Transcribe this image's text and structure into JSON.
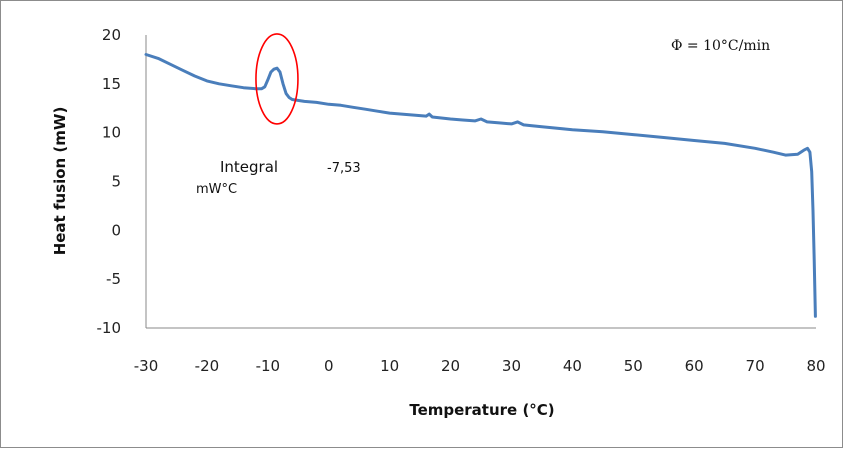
{
  "chart_data": {
    "type": "line",
    "xlabel": "Temperature (°C)",
    "ylabel": "Heat fusion (mW)",
    "xlim": [
      -30,
      80
    ],
    "ylim": [
      -10,
      20
    ],
    "x_ticks": [
      "-30",
      "-20",
      "-10",
      "0",
      "10",
      "20",
      "30",
      "40",
      "50",
      "60",
      "70",
      "80"
    ],
    "y_ticks": [
      "20",
      "15",
      "10",
      "5",
      "0",
      "-5",
      "-10"
    ],
    "grid": false,
    "series": [
      {
        "color": "#4a7ebb",
        "points": [
          [
            -30,
            18.0
          ],
          [
            -28,
            17.6
          ],
          [
            -26,
            17.0
          ],
          [
            -24,
            16.4
          ],
          [
            -22,
            15.8
          ],
          [
            -20,
            15.3
          ],
          [
            -18,
            15.0
          ],
          [
            -16,
            14.8
          ],
          [
            -14,
            14.6
          ],
          [
            -12,
            14.5
          ],
          [
            -11,
            14.5
          ],
          [
            -10.5,
            14.7
          ],
          [
            -10,
            15.4
          ],
          [
            -9.5,
            16.2
          ],
          [
            -9,
            16.5
          ],
          [
            -8.5,
            16.6
          ],
          [
            -8,
            16.2
          ],
          [
            -7.5,
            15.0
          ],
          [
            -7,
            14.0
          ],
          [
            -6.5,
            13.6
          ],
          [
            -6,
            13.4
          ],
          [
            -4,
            13.2
          ],
          [
            -2,
            13.1
          ],
          [
            0,
            12.9
          ],
          [
            2,
            12.8
          ],
          [
            4,
            12.6
          ],
          [
            6,
            12.4
          ],
          [
            8,
            12.2
          ],
          [
            10,
            12.0
          ],
          [
            12,
            11.9
          ],
          [
            14,
            11.8
          ],
          [
            16,
            11.7
          ],
          [
            16.5,
            11.9
          ],
          [
            17,
            11.6
          ],
          [
            20,
            11.4
          ],
          [
            22,
            11.3
          ],
          [
            24,
            11.2
          ],
          [
            25,
            11.4
          ],
          [
            26,
            11.1
          ],
          [
            28,
            11.0
          ],
          [
            30,
            10.9
          ],
          [
            31,
            11.1
          ],
          [
            32,
            10.8
          ],
          [
            35,
            10.6
          ],
          [
            40,
            10.3
          ],
          [
            45,
            10.1
          ],
          [
            50,
            9.8
          ],
          [
            55,
            9.5
          ],
          [
            60,
            9.2
          ],
          [
            65,
            8.9
          ],
          [
            70,
            8.4
          ],
          [
            73,
            8.0
          ],
          [
            75,
            7.7
          ],
          [
            77,
            7.8
          ],
          [
            78,
            8.2
          ],
          [
            78.6,
            8.4
          ],
          [
            79,
            8.0
          ],
          [
            79.3,
            6.0
          ],
          [
            79.5,
            2.0
          ],
          [
            79.7,
            -3.0
          ],
          [
            79.9,
            -8.8
          ]
        ]
      }
    ],
    "annotations": {
      "rate": "Φ = 10°C/min",
      "integral_label": "Integral",
      "integral_value": "-7,53",
      "integral_unit": "mW°C",
      "highlight": {
        "x": -8.5,
        "y": 15.5,
        "color": "#ff0000"
      }
    }
  }
}
